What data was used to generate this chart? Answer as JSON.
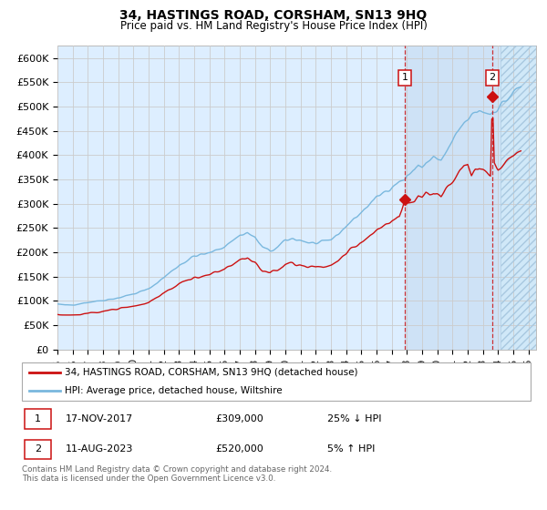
{
  "title": "34, HASTINGS ROAD, CORSHAM, SN13 9HQ",
  "subtitle": "Price paid vs. HM Land Registry's House Price Index (HPI)",
  "ytick_vals": [
    0,
    50000,
    100000,
    150000,
    200000,
    250000,
    300000,
    350000,
    400000,
    450000,
    500000,
    550000,
    600000
  ],
  "ylabel_ticks": [
    "£0",
    "£50K",
    "£100K",
    "£150K",
    "£200K",
    "£250K",
    "£300K",
    "£350K",
    "£400K",
    "£450K",
    "£500K",
    "£550K",
    "£600K"
  ],
  "ylim": [
    0,
    625000
  ],
  "xlim_start": 1995.0,
  "xlim_end": 2026.5,
  "xtick_years": [
    1995,
    1996,
    1997,
    1998,
    1999,
    2000,
    2001,
    2002,
    2003,
    2004,
    2005,
    2006,
    2007,
    2008,
    2009,
    2010,
    2011,
    2012,
    2013,
    2014,
    2015,
    2016,
    2017,
    2018,
    2019,
    2020,
    2021,
    2022,
    2023,
    2024,
    2025,
    2026
  ],
  "hpi_color": "#7ab8de",
  "price_color": "#cc1111",
  "grid_color": "#cccccc",
  "bg_color": "#ddeeff",
  "shade_color": "#cce0f5",
  "future_start": 2024.17,
  "shade_start": 2017.88,
  "legend_label_price": "34, HASTINGS ROAD, CORSHAM, SN13 9HQ (detached house)",
  "legend_label_hpi": "HPI: Average price, detached house, Wiltshire",
  "sale1_date": "17-NOV-2017",
  "sale1_price": "£309,000",
  "sale1_hpi": "25% ↓ HPI",
  "sale1_year": 2017.88,
  "sale1_price_val": 309000,
  "sale2_date": "11-AUG-2023",
  "sale2_price": "£520,000",
  "sale2_hpi": "5% ↑ HPI",
  "sale2_year": 2023.62,
  "sale2_price_val": 520000,
  "footer": "Contains HM Land Registry data © Crown copyright and database right 2024.\nThis data is licensed under the Open Government Licence v3.0."
}
